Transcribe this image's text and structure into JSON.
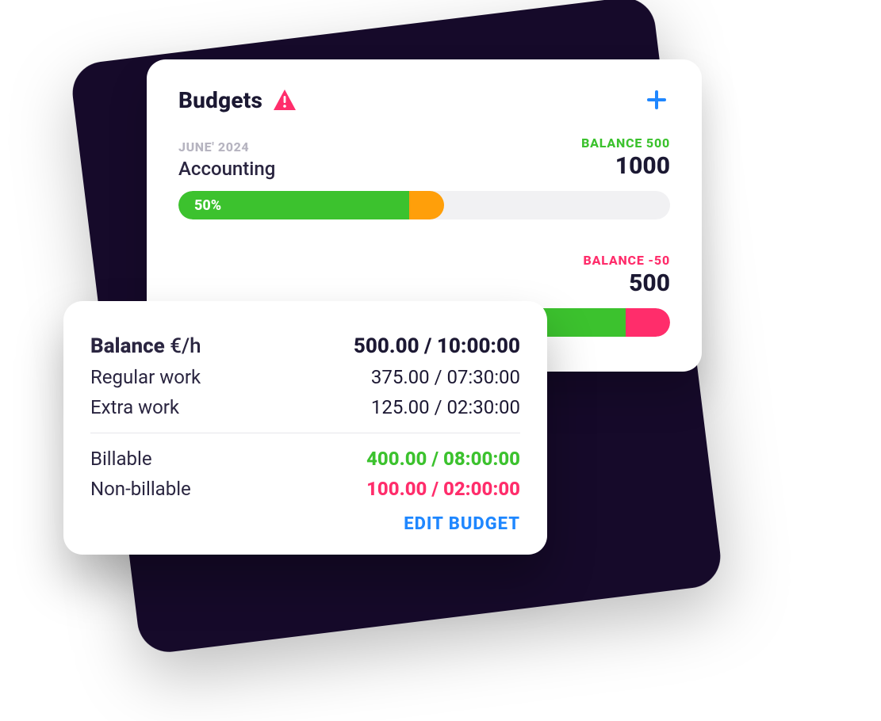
{
  "colors": {
    "bg_shape": "#160a2a",
    "card_bg": "#ffffff",
    "text_primary": "#1b1832",
    "text_muted": "#b6b4c0",
    "green": "#3cc22e",
    "orange": "#ff9f0a",
    "pink": "#ff2d6b",
    "blue": "#1f87ff",
    "track": "#f1f1f3"
  },
  "header": {
    "title": "Budgets",
    "warning_icon": "warning-icon",
    "add_icon": "plus-icon"
  },
  "budgets": [
    {
      "period": "JUNE' 2024",
      "name": "Accounting",
      "balance_label": "BALANCE 500",
      "balance_positive": true,
      "total": "1000",
      "progress": {
        "percent_label": "50%",
        "segments": [
          {
            "color": "#3cc22e",
            "start_pct": 0,
            "end_pct": 47
          },
          {
            "color": "#ff9f0a",
            "start_pct": 47,
            "end_pct": 54
          }
        ]
      }
    },
    {
      "period": "",
      "name": "",
      "balance_label": "BALANCE -50",
      "balance_positive": false,
      "total": "500",
      "progress": {
        "percent_label": "",
        "segments": [
          {
            "color": "#3cc22e",
            "start_pct": 0,
            "end_pct": 91
          },
          {
            "color": "#ff2d6b",
            "start_pct": 91,
            "end_pct": 100
          }
        ]
      }
    }
  ],
  "popover": {
    "title": "Balance",
    "unit": "€/h",
    "header_value": "500.00 / 10:00:00",
    "rows_primary": [
      {
        "label": "Regular work",
        "value": "375.00 / 07:30:00"
      },
      {
        "label": "Extra work",
        "value": "125.00 / 02:30:00"
      }
    ],
    "rows_secondary": [
      {
        "label": "Billable",
        "value": "400.00 / 08:00:00",
        "color": "#3cc22e"
      },
      {
        "label": "Non-billable",
        "value": "100.00 / 02:00:00",
        "color": "#ff2d6b"
      }
    ],
    "edit_label": "EDIT BUDGET"
  }
}
